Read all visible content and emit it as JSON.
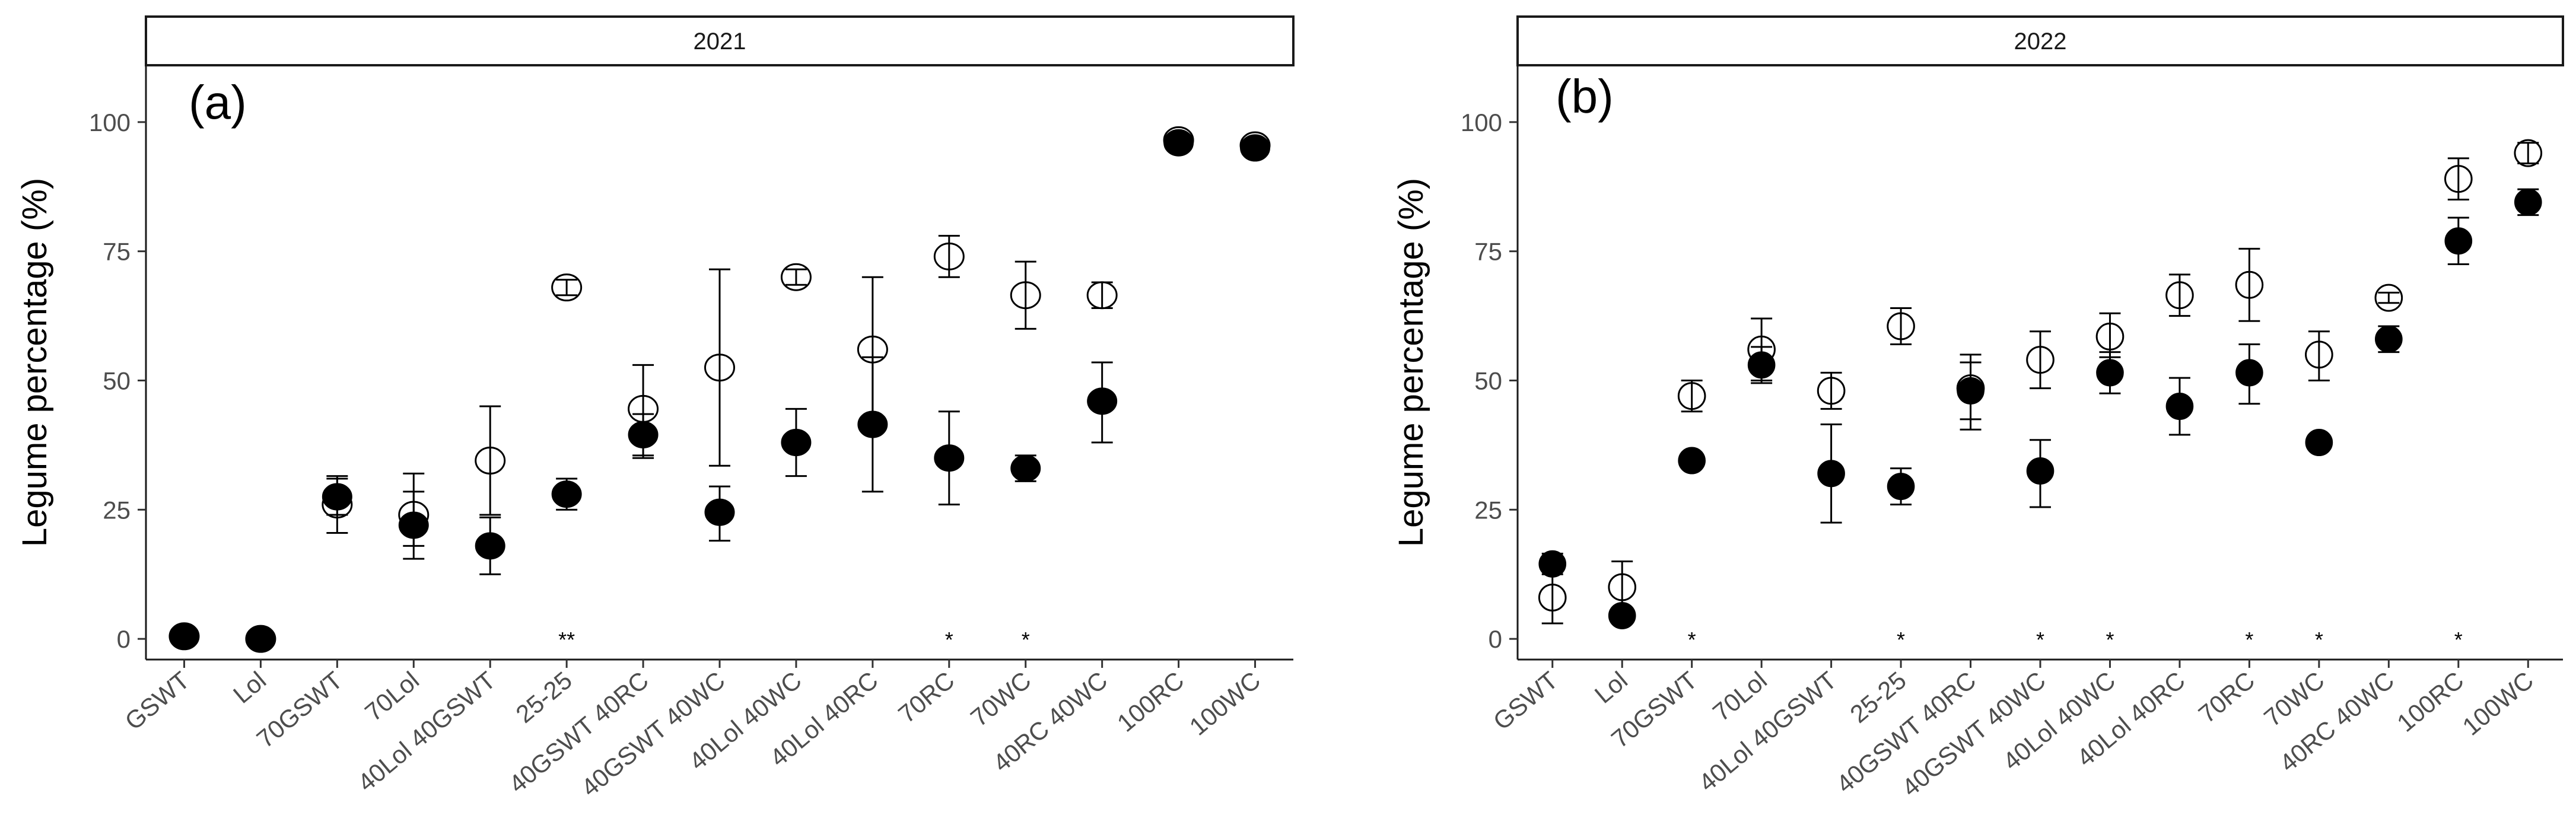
{
  "chart_data": [
    {
      "type": "scatter",
      "panel_title": "2021",
      "panel_label": "(a)",
      "ylabel": "Legume percentage (%)",
      "ylim": [
        -4,
        111
      ],
      "yticks": [
        0,
        25,
        50,
        75,
        100
      ],
      "categories": [
        "GSWT",
        "Lol",
        "70GSWT",
        "70Lol",
        "40Lol 40GSWT",
        "25-25",
        "40GSWT 40RC",
        "40GSWT 40WC",
        "40Lol 40WC",
        "40Lol 40RC",
        "70RC",
        "70WC",
        "40RC 40WC",
        "100RC",
        "100WC"
      ],
      "series": [
        {
          "name": "open",
          "style": "open",
          "values": [
            0.5,
            0,
            26,
            24,
            34.5,
            68,
            44.5,
            52.5,
            70,
            56,
            74,
            66.5,
            66.5,
            96.5,
            95.5
          ],
          "lower": [
            null,
            null,
            20.5,
            18,
            24,
            66.5,
            35,
            33.5,
            68.5,
            42,
            70,
            60,
            64,
            null,
            null
          ],
          "upper": [
            null,
            null,
            31,
            32,
            45,
            69.5,
            53,
            71.5,
            71.5,
            70,
            78,
            73,
            69,
            null,
            null
          ]
        },
        {
          "name": "filled",
          "style": "filled",
          "values": [
            0.5,
            0,
            27.5,
            22,
            18,
            28,
            39.5,
            24.5,
            38,
            41.5,
            35,
            33,
            46,
            96,
            95
          ],
          "lower": [
            null,
            null,
            24,
            15.5,
            12.5,
            25,
            35.5,
            19,
            31.5,
            28.5,
            26,
            30.5,
            38,
            null,
            null
          ],
          "upper": [
            null,
            null,
            31.5,
            28.5,
            23.5,
            31,
            43.5,
            29.5,
            44.5,
            54.5,
            44,
            35.5,
            53.5,
            null,
            null
          ]
        }
      ],
      "significance": [
        "",
        "",
        "",
        "",
        "",
        "**",
        "",
        "",
        "",
        "",
        "*",
        "*",
        "",
        "",
        ""
      ]
    },
    {
      "type": "scatter",
      "panel_title": "2022",
      "panel_label": "(b)",
      "ylabel": "Legume percentage (%)",
      "ylim": [
        -4,
        111
      ],
      "yticks": [
        0,
        25,
        50,
        75,
        100
      ],
      "categories": [
        "GSWT",
        "Lol",
        "70GSWT",
        "70Lol",
        "40Lol 40GSWT",
        "25-25",
        "40GSWT 40RC",
        "40GSWT 40WC",
        "40Lol 40WC",
        "40Lol 40RC",
        "70RC",
        "70WC",
        "40RC 40WC",
        "100RC",
        "100WC"
      ],
      "series": [
        {
          "name": "open",
          "style": "open",
          "values": [
            8,
            10,
            47,
            56,
            48,
            60.5,
            48.5,
            54,
            58.5,
            66.5,
            68.5,
            55,
            66,
            89,
            94
          ],
          "lower": [
            3,
            5,
            44,
            50,
            44.5,
            57,
            42.5,
            48.5,
            54.5,
            62.5,
            61.5,
            50,
            65,
            85,
            92
          ],
          "upper": [
            13,
            15,
            50,
            62,
            51.5,
            64,
            55,
            59.5,
            63,
            70.5,
            75.5,
            59.5,
            67,
            93,
            96
          ]
        },
        {
          "name": "filled",
          "style": "filled",
          "values": [
            14.5,
            4.5,
            34.5,
            53,
            32,
            29.5,
            48,
            32.5,
            51.5,
            45,
            51.5,
            38,
            58,
            77,
            84.5
          ],
          "lower": [
            12.5,
            null,
            33,
            49.5,
            22.5,
            26,
            40.5,
            25.5,
            47.5,
            39.5,
            45.5,
            36.5,
            55.5,
            72.5,
            82
          ],
          "upper": [
            16.5,
            null,
            36,
            56.5,
            41.5,
            33,
            53.5,
            38.5,
            55.5,
            50.5,
            57,
            39.5,
            60.5,
            81.5,
            87
          ]
        }
      ],
      "significance": [
        "",
        "",
        "*",
        "",
        "",
        "*",
        "",
        "*",
        "*",
        "",
        "*",
        "*",
        "",
        "*",
        ""
      ]
    }
  ]
}
